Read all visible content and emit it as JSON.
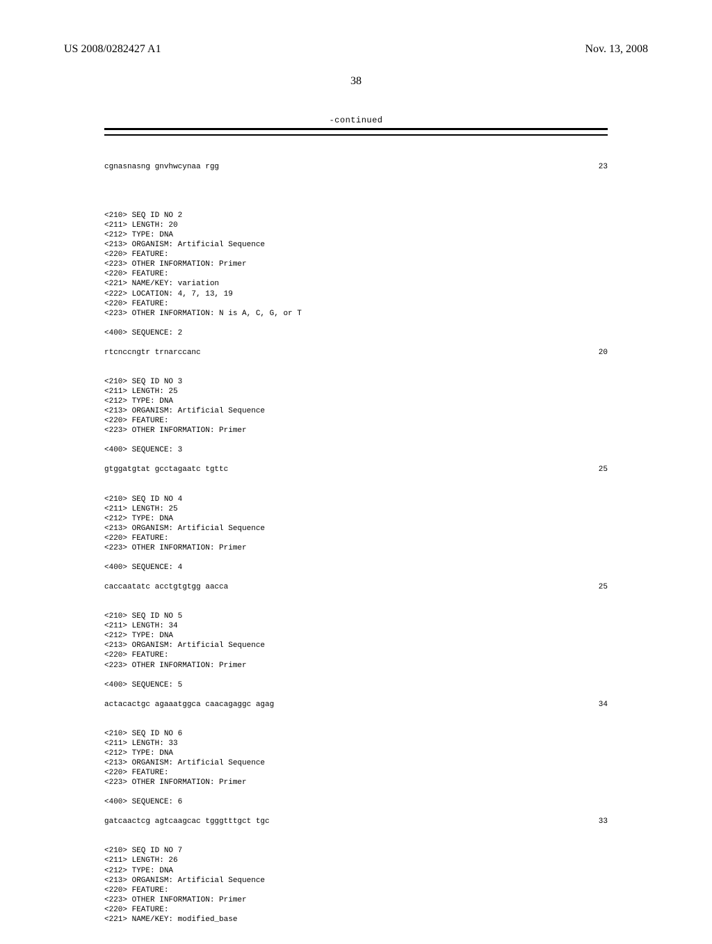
{
  "header": {
    "left": "US 2008/0282427 A1",
    "right": "Nov. 13, 2008",
    "page_number": "38"
  },
  "continued_label": "-continued",
  "top_sequence": {
    "bases": "cgnasnasng gnvhwcynaa rgg",
    "length": "23"
  },
  "blocks": [
    {
      "id": "seq2",
      "headers": [
        "<210> SEQ ID NO 2",
        "<211> LENGTH: 20",
        "<212> TYPE: DNA",
        "<213> ORGANISM: Artificial Sequence",
        "<220> FEATURE:",
        "<223> OTHER INFORMATION: Primer",
        "<220> FEATURE:",
        "<221> NAME/KEY: variation",
        "<222> LOCATION: 4, 7, 13, 19",
        "<220> FEATURE:",
        "<223> OTHER INFORMATION: N is A, C, G, or T"
      ],
      "seq_label": "<400> SEQUENCE: 2",
      "bases": "rtcnccngtr trnarccanc",
      "length": "20"
    },
    {
      "id": "seq3",
      "headers": [
        "<210> SEQ ID NO 3",
        "<211> LENGTH: 25",
        "<212> TYPE: DNA",
        "<213> ORGANISM: Artificial Sequence",
        "<220> FEATURE:",
        "<223> OTHER INFORMATION: Primer"
      ],
      "seq_label": "<400> SEQUENCE: 3",
      "bases": "gtggatgtat gcctagaatc tgttc",
      "length": "25"
    },
    {
      "id": "seq4",
      "headers": [
        "<210> SEQ ID NO 4",
        "<211> LENGTH: 25",
        "<212> TYPE: DNA",
        "<213> ORGANISM: Artificial Sequence",
        "<220> FEATURE:",
        "<223> OTHER INFORMATION: Primer"
      ],
      "seq_label": "<400> SEQUENCE: 4",
      "bases": "caccaatatc acctgtgtgg aacca",
      "length": "25"
    },
    {
      "id": "seq5",
      "headers": [
        "<210> SEQ ID NO 5",
        "<211> LENGTH: 34",
        "<212> TYPE: DNA",
        "<213> ORGANISM: Artificial Sequence",
        "<220> FEATURE:",
        "<223> OTHER INFORMATION: Primer"
      ],
      "seq_label": "<400> SEQUENCE: 5",
      "bases": "actacactgc agaaatggca caacagaggc agag",
      "length": "34"
    },
    {
      "id": "seq6",
      "headers": [
        "<210> SEQ ID NO 6",
        "<211> LENGTH: 33",
        "<212> TYPE: DNA",
        "<213> ORGANISM: Artificial Sequence",
        "<220> FEATURE:",
        "<223> OTHER INFORMATION: Primer"
      ],
      "seq_label": "<400> SEQUENCE: 6",
      "bases": "gatcaactcg agtcaagcac tgggtttgct tgc",
      "length": "33"
    },
    {
      "id": "seq7",
      "headers": [
        "<210> SEQ ID NO 7",
        "<211> LENGTH: 26",
        "<212> TYPE: DNA",
        "<213> ORGANISM: Artificial Sequence",
        "<220> FEATURE:",
        "<223> OTHER INFORMATION: Primer",
        "<220> FEATURE:",
        "<221> NAME/KEY: modified_base"
      ]
    }
  ]
}
